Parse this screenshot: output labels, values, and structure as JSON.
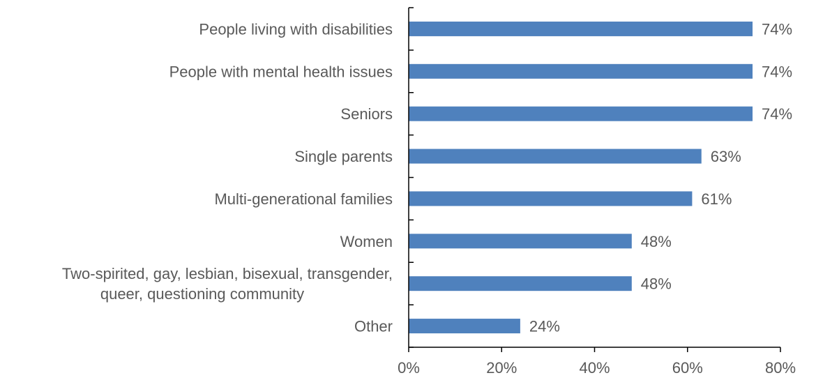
{
  "chart_data": {
    "type": "bar",
    "orientation": "horizontal",
    "categories": [
      [
        "People living with disabilities"
      ],
      [
        "People with mental health issues"
      ],
      [
        "Seniors"
      ],
      [
        "Single parents"
      ],
      [
        "Multi-generational families"
      ],
      [
        "Women"
      ],
      [
        "Two-spirited, gay, lesbian, bisexual, transgender,",
        "queer, questioning community"
      ],
      [
        "Other"
      ]
    ],
    "values": [
      74,
      74,
      74,
      63,
      61,
      48,
      48,
      24
    ],
    "data_labels": [
      "74%",
      "74%",
      "74%",
      "63%",
      "61%",
      "48%",
      "48%",
      "24%"
    ],
    "x_ticks": [
      0,
      20,
      40,
      60,
      80
    ],
    "x_tick_labels": [
      "0%",
      "20%",
      "40%",
      "60%",
      "80%"
    ],
    "xlim": [
      0,
      80
    ],
    "grid": false,
    "legend": "none",
    "colors": {
      "bar": "#4f81bd",
      "axis": "#000000",
      "text": "#595959"
    }
  }
}
